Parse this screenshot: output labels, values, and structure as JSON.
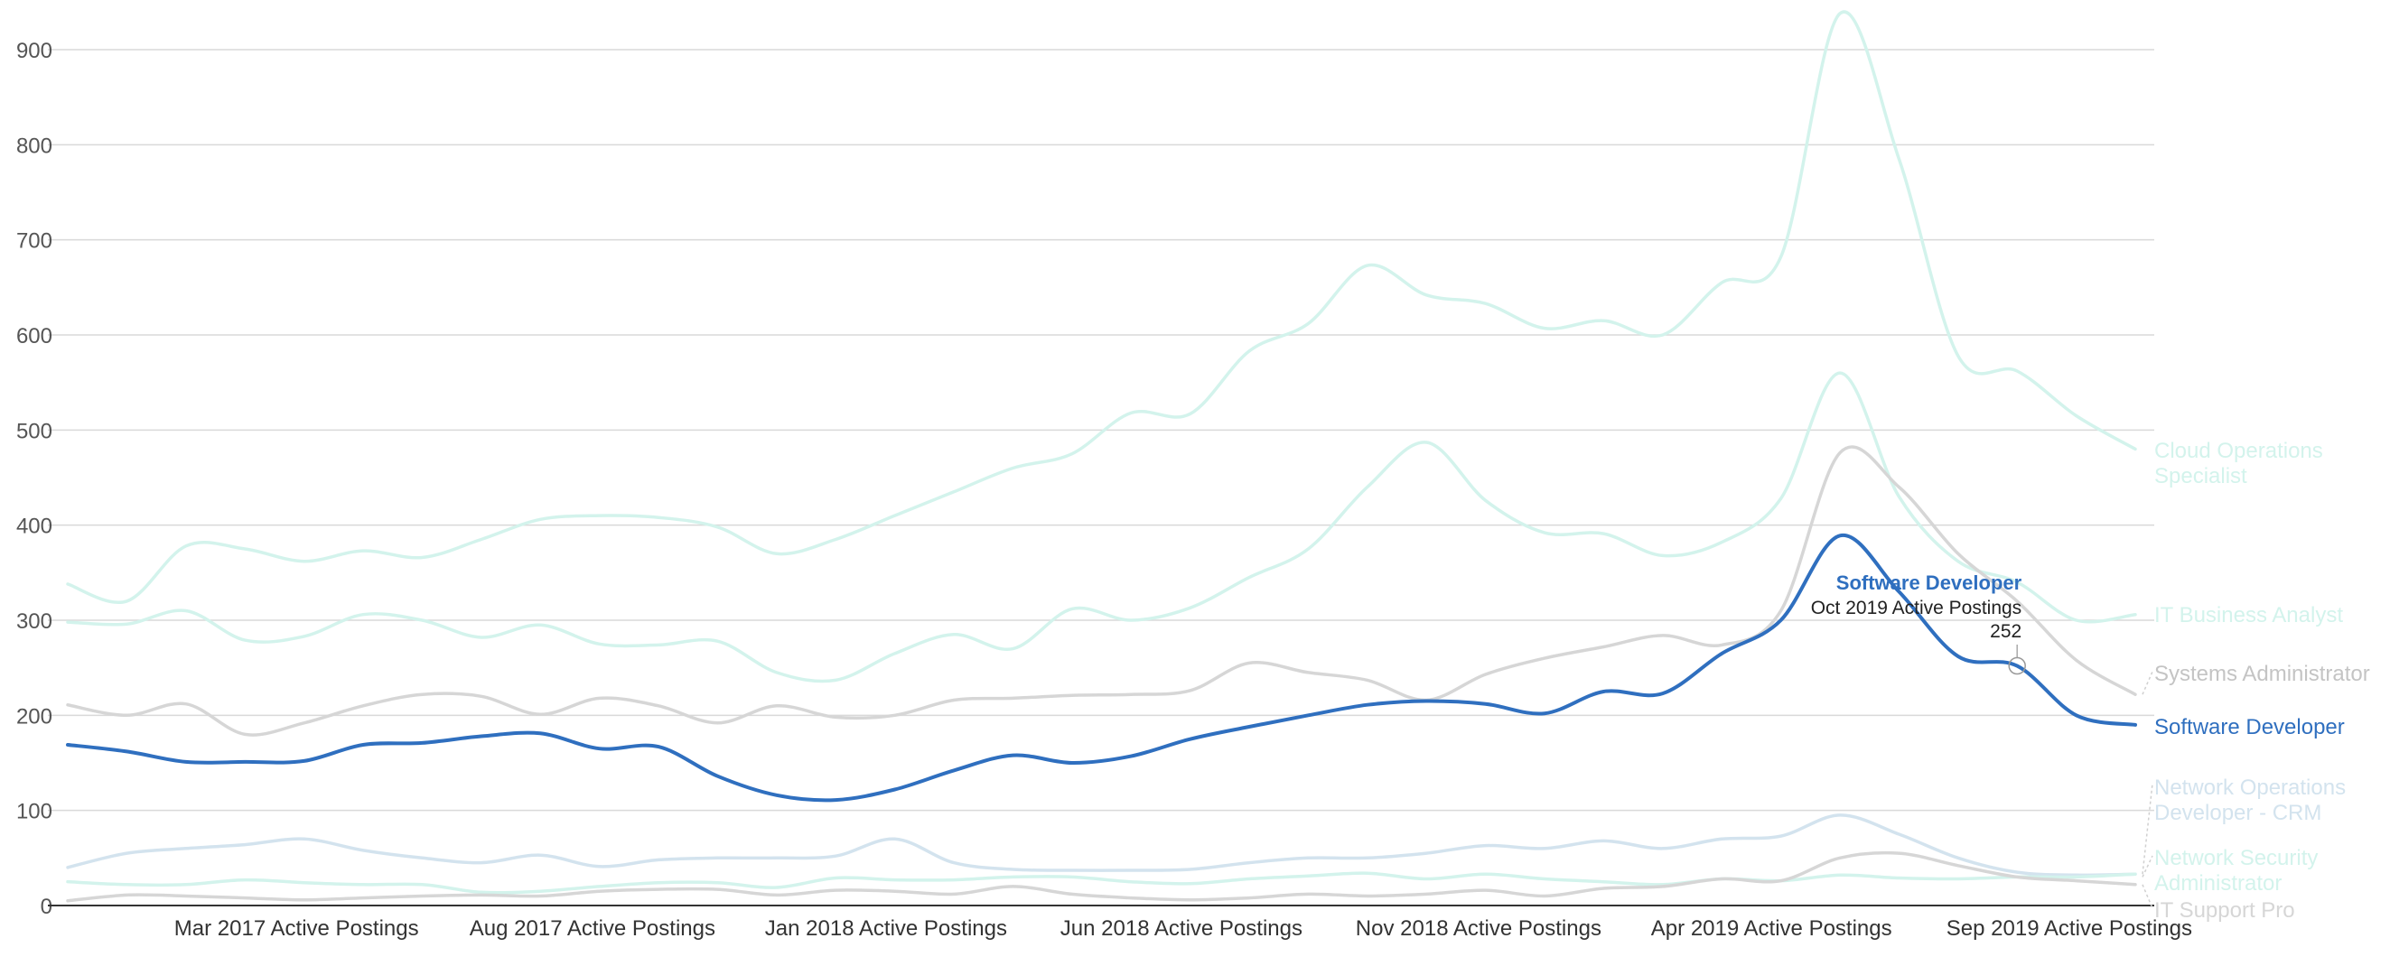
{
  "colors": {
    "background": "#ffffff",
    "grid": "#d9d9d9",
    "axis": "#333333",
    "tick_label": "#555555",
    "highlight": "#2f6fbf",
    "teal_faint": "#d3f3ec",
    "gray_faint": "#d6d6d6",
    "blue_faint": "#d3e3ee"
  },
  "chart_data": {
    "type": "line",
    "x": [
      "Jan 2017",
      "Feb 2017",
      "Mar 2017",
      "Apr 2017",
      "May 2017",
      "Jun 2017",
      "Jul 2017",
      "Aug 2017",
      "Sep 2017",
      "Oct 2017",
      "Nov 2017",
      "Dec 2017",
      "Jan 2018",
      "Feb 2018",
      "Mar 2018",
      "Apr 2018",
      "May 2018",
      "Jun 2018",
      "Jul 2018",
      "Aug 2018",
      "Sep 2018",
      "Oct 2018",
      "Nov 2018",
      "Dec 2018",
      "Jan 2019",
      "Feb 2019",
      "Mar 2019",
      "Apr 2019",
      "May 2019",
      "Jun 2019",
      "Jul 2019",
      "Aug 2019",
      "Sep 2019",
      "Oct 2019",
      "Nov 2019",
      "Dec 2019"
    ],
    "x_tick_labels": [
      "Mar 2017 Active Postings",
      "Aug 2017 Active Postings",
      "Jan 2018 Active Postings",
      "Jun 2018 Active Postings",
      "Nov 2018 Active Postings",
      "Apr 2019 Active Postings",
      "Sep 2019 Active Postings"
    ],
    "x_tick_positions": [
      2,
      7,
      12,
      17,
      22,
      27,
      32
    ],
    "y_ticks": [
      0,
      100,
      200,
      300,
      400,
      500,
      600,
      700,
      800,
      900
    ],
    "ylim": [
      0,
      900
    ],
    "grid": true,
    "series": [
      {
        "name": "Cloud Operations Specialist",
        "label": "Cloud Operations Specialist",
        "color": "#d3f3ec",
        "highlight": false,
        "values": [
          338,
          320,
          378,
          375,
          362,
          373,
          366,
          385,
          406,
          410,
          408,
          398,
          370,
          385,
          410,
          435,
          460,
          475,
          518,
          517,
          583,
          612,
          673,
          642,
          633,
          607,
          615,
          600,
          655,
          682,
          938,
          785,
          578,
          562,
          515,
          480
        ]
      },
      {
        "name": "IT Business Analyst",
        "label": "IT Business Analyst",
        "color": "#d3f3ec",
        "highlight": false,
        "values": [
          298,
          296,
          310,
          279,
          283,
          306,
          300,
          282,
          295,
          275,
          274,
          278,
          245,
          237,
          265,
          285,
          270,
          312,
          300,
          313,
          345,
          375,
          440,
          487,
          426,
          392,
          391,
          368,
          382,
          428,
          560,
          430,
          362,
          340,
          300,
          306
        ]
      },
      {
        "name": "Systems Administrator",
        "label": "Systems Administrator",
        "color": "#d6d6d6",
        "highlight": false,
        "values": [
          211,
          200,
          212,
          180,
          192,
          210,
          222,
          220,
          201,
          218,
          210,
          192,
          210,
          198,
          200,
          216,
          218,
          221,
          222,
          226,
          255,
          245,
          237,
          216,
          243,
          260,
          272,
          284,
          274,
          310,
          476,
          440,
          370,
          320,
          258,
          222
        ]
      },
      {
        "name": "Software Developer",
        "label": "Software Developer",
        "color": "#2f6fbf",
        "highlight": true,
        "values": [
          169,
          162,
          151,
          151,
          152,
          169,
          171,
          178,
          181,
          165,
          167,
          136,
          116,
          111,
          122,
          142,
          158,
          150,
          157,
          175,
          188,
          200,
          211,
          215,
          212,
          202,
          225,
          223,
          265,
          300,
          389,
          330,
          262,
          252,
          200,
          190
        ]
      },
      {
        "name": "Network Operations Developer - CRM",
        "label": "Network Operations Developer - CRM",
        "color": "#d3e3ee",
        "highlight": false,
        "values": [
          40,
          55,
          60,
          64,
          70,
          58,
          50,
          45,
          53,
          41,
          48,
          50,
          50,
          52,
          70,
          45,
          38,
          37,
          37,
          38,
          45,
          50,
          50,
          55,
          63,
          60,
          68,
          60,
          70,
          73,
          95,
          75,
          50,
          35,
          32,
          33
        ]
      },
      {
        "name": "Network Security Administrator",
        "label": "Network Security Administrator",
        "color": "#d3f3ec",
        "highlight": false,
        "values": [
          25,
          22,
          22,
          27,
          24,
          22,
          22,
          14,
          15,
          20,
          24,
          24,
          19,
          29,
          27,
          27,
          30,
          30,
          25,
          23,
          28,
          31,
          34,
          28,
          33,
          28,
          25,
          22,
          28,
          26,
          32,
          29,
          28,
          30,
          30,
          33
        ]
      },
      {
        "name": "IT Support Pro",
        "label": "IT Support Pro",
        "color": "#d6d6d6",
        "highlight": false,
        "values": [
          5,
          11,
          10,
          8,
          6,
          8,
          10,
          11,
          10,
          15,
          17,
          17,
          11,
          16,
          15,
          12,
          20,
          12,
          8,
          6,
          8,
          12,
          10,
          12,
          16,
          10,
          18,
          20,
          28,
          26,
          50,
          55,
          42,
          30,
          26,
          22
        ]
      }
    ],
    "right_labels": [
      {
        "lines": [
          "Cloud Operations",
          "Specialist"
        ],
        "color": "#d3f3ec"
      },
      {
        "lines": [
          "IT Business Analyst"
        ],
        "color": "#d3f3ec"
      },
      {
        "lines": [
          "Systems Administrator"
        ],
        "color": "#c4c4c4"
      },
      {
        "lines": [
          "Software Developer"
        ],
        "color": "#2f6fbf"
      },
      {
        "lines": [
          "Network Operations",
          "Developer - CRM"
        ],
        "color": "#d3e3ee"
      },
      {
        "lines": [
          "Network Security",
          "Administrator"
        ],
        "color": "#d3f3ec"
      },
      {
        "lines": [
          "IT Support Pro"
        ],
        "color": "#d6d6d6"
      }
    ],
    "tooltip": {
      "series": "Software Developer",
      "period": "Oct 2019 Active Postings",
      "value": "252",
      "index": 33
    }
  }
}
